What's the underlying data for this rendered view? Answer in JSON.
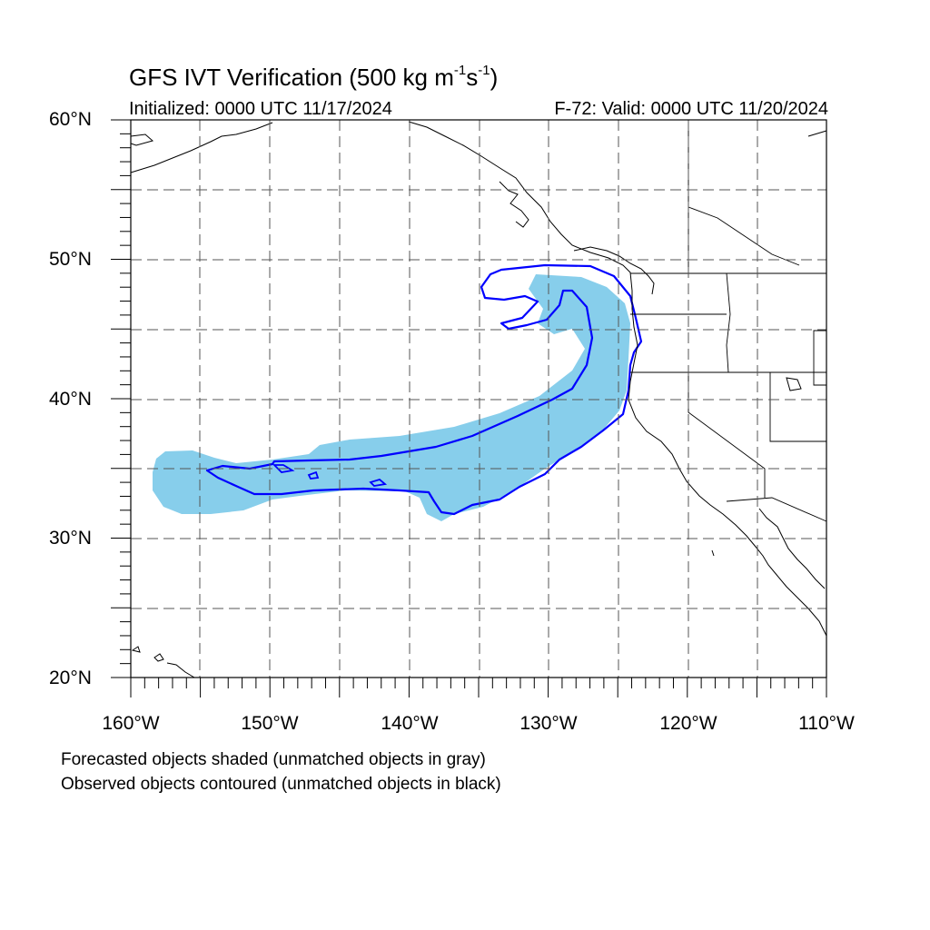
{
  "map": {
    "title_main": "GFS IVT Verification (500 kg m",
    "title_exp1": "-1",
    "title_mid": "s",
    "title_exp2": "-1",
    "title_close": ")",
    "initialized": "Initialized: 0000 UTC 11/17/2024",
    "valid": "F-72: Valid: 0000 UTC 11/20/2024",
    "lat_labels": [
      "60°N",
      "50°N",
      "40°N",
      "30°N",
      "20°N"
    ],
    "lon_labels": [
      "160°W",
      "150°W",
      "140°W",
      "130°W",
      "120°W",
      "110°W"
    ],
    "extent": {
      "lon_min": -160,
      "lon_max": -110,
      "lat_min": 20,
      "lat_max": 60
    },
    "grid": "dashed every 5°",
    "forecast_color": "#87CEEB",
    "observed_color": "#0000FF",
    "coast_color": "#000000"
  },
  "notes": {
    "forecast": "Forecasted objects shaded (unmatched objects in gray)",
    "observed": "Observed objects contoured (unmatched objects in black)"
  }
}
